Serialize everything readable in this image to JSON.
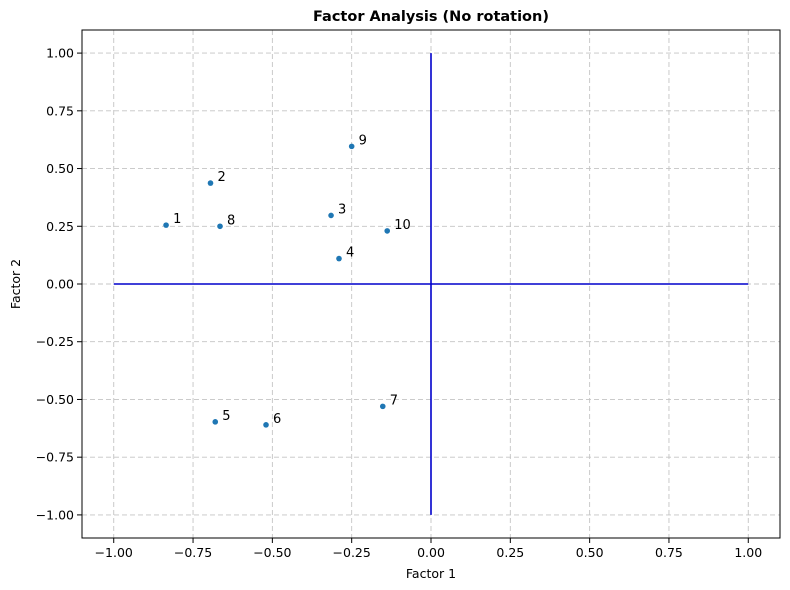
{
  "chart_data": {
    "type": "scatter",
    "title": "Factor Analysis (No rotation)",
    "xlabel": "Factor 1",
    "ylabel": "Factor 2",
    "xlim": [
      -1.1,
      1.1
    ],
    "ylim": [
      -1.1,
      1.1
    ],
    "xticks": [
      -1.0,
      -0.75,
      -0.5,
      -0.25,
      0.0,
      0.25,
      0.5,
      0.75,
      1.0
    ],
    "yticks": [
      -1.0,
      -0.75,
      -0.5,
      -0.25,
      0.0,
      0.25,
      0.5,
      0.75,
      1.0
    ],
    "xtick_labels": [
      "−1.00",
      "−0.75",
      "−0.50",
      "−0.25",
      "0.00",
      "0.25",
      "0.50",
      "0.75",
      "1.00"
    ],
    "ytick_labels": [
      "−1.00",
      "−0.75",
      "−0.50",
      "−0.25",
      "0.00",
      "0.25",
      "0.50",
      "0.75",
      "1.00"
    ],
    "grid": true,
    "point_color": "#1f77b4",
    "axis_line_color": "#0000cc",
    "reference_lines": [
      {
        "orientation": "horizontal",
        "y": 0,
        "x_range": [
          -1,
          1
        ]
      },
      {
        "orientation": "vertical",
        "x": 0,
        "y_range": [
          -1,
          1
        ]
      }
    ],
    "points": [
      {
        "label": "1",
        "x": -0.835,
        "y": 0.255
      },
      {
        "label": "2",
        "x": -0.695,
        "y": 0.437
      },
      {
        "label": "3",
        "x": -0.315,
        "y": 0.297
      },
      {
        "label": "4",
        "x": -0.29,
        "y": 0.11
      },
      {
        "label": "5",
        "x": -0.68,
        "y": -0.597
      },
      {
        "label": "6",
        "x": -0.52,
        "y": -0.61
      },
      {
        "label": "7",
        "x": -0.152,
        "y": -0.53
      },
      {
        "label": "8",
        "x": -0.665,
        "y": 0.25
      },
      {
        "label": "9",
        "x": -0.25,
        "y": 0.596
      },
      {
        "label": "10",
        "x": -0.138,
        "y": 0.23
      }
    ]
  }
}
